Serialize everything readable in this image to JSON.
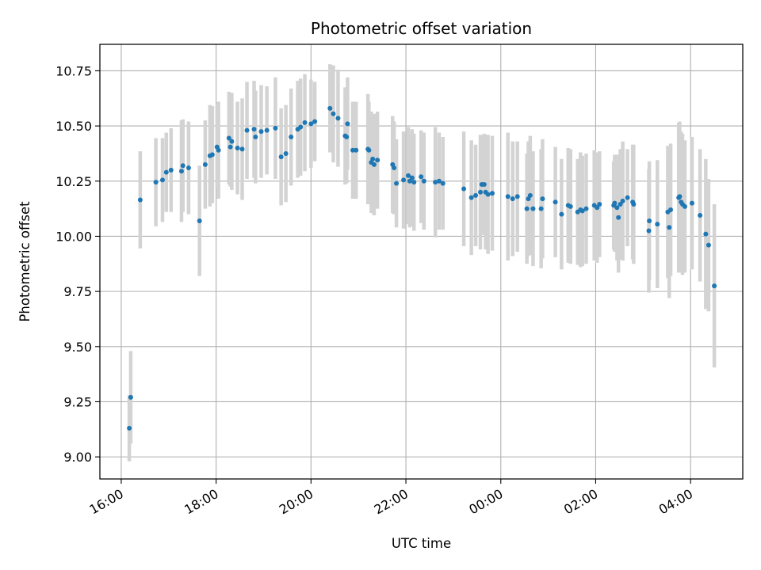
{
  "chart_data": {
    "type": "scatter",
    "title": "Photometric offset variation",
    "xlabel": "UTC time",
    "ylabel": "Photometric offset",
    "x_unit": "hours (time of day, continuing past midnight)",
    "xlim": [
      15.55,
      29.1
    ],
    "ylim": [
      8.9,
      10.87
    ],
    "x_ticks": [
      {
        "value": 16,
        "label": "16:00"
      },
      {
        "value": 18,
        "label": "18:00"
      },
      {
        "value": 20,
        "label": "20:00"
      },
      {
        "value": 22,
        "label": "22:00"
      },
      {
        "value": 24,
        "label": "00:00"
      },
      {
        "value": 26,
        "label": "02:00"
      },
      {
        "value": 28,
        "label": "04:00"
      }
    ],
    "y_ticks": [
      {
        "value": 9.0,
        "label": "9.00"
      },
      {
        "value": 9.25,
        "label": "9.25"
      },
      {
        "value": 9.5,
        "label": "9.50"
      },
      {
        "value": 9.75,
        "label": "9.75"
      },
      {
        "value": 10.0,
        "label": "10.00"
      },
      {
        "value": 10.25,
        "label": "10.25"
      },
      {
        "value": 10.5,
        "label": "10.50"
      },
      {
        "value": 10.75,
        "label": "10.75"
      }
    ],
    "grid": true,
    "colors": {
      "point": "#1f77b4",
      "errorbar": "#d3d3d3",
      "grid": "#b0b0b0"
    },
    "points": [
      [
        16.17,
        9.13,
        0.15
      ],
      [
        16.2,
        9.27,
        0.21
      ],
      [
        16.4,
        10.165,
        0.22
      ],
      [
        16.73,
        10.245,
        0.2
      ],
      [
        16.87,
        10.255,
        0.19
      ],
      [
        16.95,
        10.29,
        0.18
      ],
      [
        17.05,
        10.3,
        0.19
      ],
      [
        17.27,
        10.295,
        0.23
      ],
      [
        17.3,
        10.32,
        0.21
      ],
      [
        17.42,
        10.31,
        0.21
      ],
      [
        17.65,
        10.07,
        0.25
      ],
      [
        17.77,
        10.325,
        0.2
      ],
      [
        17.87,
        10.365,
        0.23
      ],
      [
        17.92,
        10.37,
        0.22
      ],
      [
        18.02,
        10.405,
        0.19
      ],
      [
        18.05,
        10.39,
        0.22
      ],
      [
        18.27,
        10.445,
        0.21
      ],
      [
        18.3,
        10.405,
        0.18
      ],
      [
        18.33,
        10.43,
        0.22
      ],
      [
        18.45,
        10.4,
        0.21
      ],
      [
        18.55,
        10.395,
        0.23
      ],
      [
        18.65,
        10.48,
        0.22
      ],
      [
        18.8,
        10.485,
        0.22
      ],
      [
        18.83,
        10.45,
        0.21
      ],
      [
        18.95,
        10.475,
        0.21
      ],
      [
        19.07,
        10.48,
        0.2
      ],
      [
        19.25,
        10.49,
        0.23
      ],
      [
        19.37,
        10.36,
        0.22
      ],
      [
        19.47,
        10.375,
        0.22
      ],
      [
        19.58,
        10.45,
        0.22
      ],
      [
        19.72,
        10.485,
        0.22
      ],
      [
        19.78,
        10.495,
        0.22
      ],
      [
        19.87,
        10.515,
        0.22
      ],
      [
        20.0,
        10.51,
        0.2
      ],
      [
        20.08,
        10.52,
        0.18
      ],
      [
        20.4,
        10.58,
        0.2
      ],
      [
        20.47,
        10.555,
        0.22
      ],
      [
        20.57,
        10.535,
        0.22
      ],
      [
        20.72,
        10.455,
        0.22
      ],
      [
        20.75,
        10.45,
        0.21
      ],
      [
        20.77,
        10.51,
        0.21
      ],
      [
        20.88,
        10.39,
        0.22
      ],
      [
        20.95,
        10.39,
        0.22
      ],
      [
        21.2,
        10.395,
        0.25
      ],
      [
        21.22,
        10.39,
        0.22
      ],
      [
        21.27,
        10.335,
        0.23
      ],
      [
        21.3,
        10.35,
        0.2
      ],
      [
        21.33,
        10.325,
        0.23
      ],
      [
        21.4,
        10.345,
        0.22
      ],
      [
        21.72,
        10.325,
        0.22
      ],
      [
        21.75,
        10.31,
        0.21
      ],
      [
        21.8,
        10.24,
        0.2
      ],
      [
        21.95,
        10.255,
        0.22
      ],
      [
        22.05,
        10.275,
        0.22
      ],
      [
        22.08,
        10.25,
        0.21
      ],
      [
        22.13,
        10.265,
        0.22
      ],
      [
        22.17,
        10.245,
        0.22
      ],
      [
        22.32,
        10.27,
        0.21
      ],
      [
        22.38,
        10.25,
        0.22
      ],
      [
        22.62,
        10.245,
        0.25
      ],
      [
        22.7,
        10.25,
        0.22
      ],
      [
        22.78,
        10.24,
        0.21
      ],
      [
        23.22,
        10.215,
        0.26
      ],
      [
        23.38,
        10.175,
        0.26
      ],
      [
        23.47,
        10.185,
        0.23
      ],
      [
        23.57,
        10.2,
        0.26
      ],
      [
        23.6,
        10.235,
        0.22
      ],
      [
        23.65,
        10.235,
        0.23
      ],
      [
        23.68,
        10.2,
        0.26
      ],
      [
        23.73,
        10.19,
        0.27
      ],
      [
        23.82,
        10.195,
        0.26
      ],
      [
        24.15,
        10.18,
        0.29
      ],
      [
        24.25,
        10.17,
        0.26
      ],
      [
        24.35,
        10.18,
        0.25
      ],
      [
        24.55,
        10.125,
        0.25
      ],
      [
        24.58,
        10.17,
        0.26
      ],
      [
        24.62,
        10.185,
        0.27
      ],
      [
        24.68,
        10.125,
        0.26
      ],
      [
        24.85,
        10.125,
        0.27
      ],
      [
        24.88,
        10.17,
        0.27
      ],
      [
        25.15,
        10.155,
        0.25
      ],
      [
        25.28,
        10.1,
        0.25
      ],
      [
        25.42,
        10.14,
        0.26
      ],
      [
        25.47,
        10.135,
        0.26
      ],
      [
        25.62,
        10.11,
        0.24
      ],
      [
        25.68,
        10.12,
        0.26
      ],
      [
        25.72,
        10.115,
        0.25
      ],
      [
        25.8,
        10.125,
        0.25
      ],
      [
        25.97,
        10.14,
        0.25
      ],
      [
        26.03,
        10.13,
        0.25
      ],
      [
        26.08,
        10.145,
        0.24
      ],
      [
        26.38,
        10.14,
        0.2
      ],
      [
        26.4,
        10.15,
        0.22
      ],
      [
        26.45,
        10.13,
        0.24
      ],
      [
        26.48,
        10.085,
        0.25
      ],
      [
        26.52,
        10.145,
        0.25
      ],
      [
        26.57,
        10.16,
        0.27
      ],
      [
        26.67,
        10.175,
        0.22
      ],
      [
        26.78,
        10.155,
        0.26
      ],
      [
        26.8,
        10.145,
        0.27
      ],
      [
        27.12,
        10.025,
        0.28
      ],
      [
        27.13,
        10.07,
        0.27
      ],
      [
        27.3,
        10.055,
        0.29
      ],
      [
        27.52,
        10.11,
        0.3
      ],
      [
        27.55,
        10.04,
        0.32
      ],
      [
        27.58,
        10.12,
        0.3
      ],
      [
        27.75,
        10.175,
        0.34
      ],
      [
        27.77,
        10.18,
        0.34
      ],
      [
        27.8,
        10.155,
        0.32
      ],
      [
        27.83,
        10.145,
        0.32
      ],
      [
        27.88,
        10.135,
        0.3
      ],
      [
        28.03,
        10.15,
        0.3
      ],
      [
        28.2,
        10.095,
        0.3
      ],
      [
        28.32,
        10.01,
        0.34
      ],
      [
        28.38,
        9.96,
        0.3
      ],
      [
        28.5,
        9.775,
        0.37
      ]
    ]
  }
}
